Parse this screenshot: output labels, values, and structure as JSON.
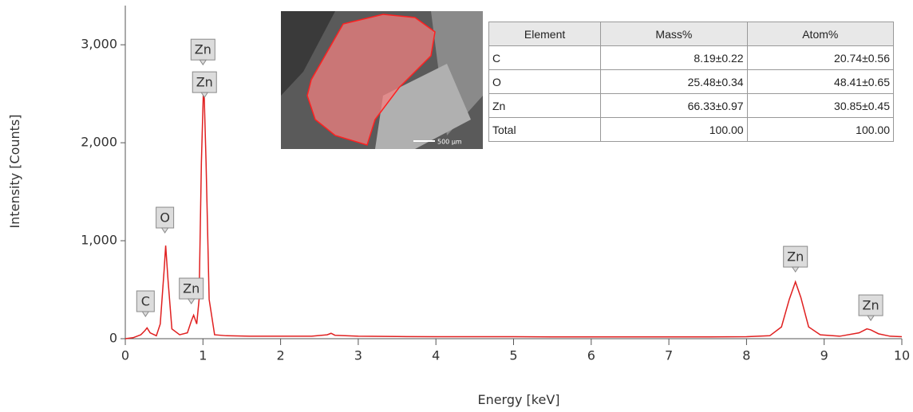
{
  "chart_data": {
    "type": "line",
    "xlabel": "Energy [keV]",
    "ylabel": "Intensity [Counts]",
    "xlim": [
      0,
      10
    ],
    "ylim": [
      0,
      3400
    ],
    "xticks": [
      0,
      1,
      2,
      3,
      4,
      5,
      6,
      7,
      8,
      9,
      10
    ],
    "yticks": [
      0,
      {
        "value": 1000,
        "label": "1,000"
      },
      {
        "value": 2000,
        "label": "2,000"
      },
      {
        "value": 3000,
        "label": "3,000"
      }
    ],
    "series": [
      {
        "color": "#e02020",
        "x": [
          0,
          0.1,
          0.2,
          0.25,
          0.28,
          0.32,
          0.4,
          0.45,
          0.5,
          0.52,
          0.55,
          0.6,
          0.7,
          0.8,
          0.85,
          0.88,
          0.92,
          0.95,
          0.98,
          1.01,
          1.04,
          1.08,
          1.15,
          1.3,
          1.6,
          2.0,
          2.4,
          2.6,
          2.65,
          2.7,
          3,
          3.5,
          4,
          4.5,
          5,
          5.5,
          6,
          6.5,
          7,
          7.5,
          8,
          8.3,
          8.45,
          8.55,
          8.63,
          8.7,
          8.8,
          8.95,
          9.2,
          9.45,
          9.55,
          9.6,
          9.7,
          9.85,
          10
        ],
        "values": [
          0,
          10,
          40,
          80,
          110,
          60,
          30,
          150,
          700,
          950,
          600,
          100,
          40,
          60,
          180,
          240,
          150,
          400,
          1800,
          2650,
          1800,
          400,
          40,
          30,
          25,
          25,
          25,
          40,
          55,
          35,
          25,
          22,
          20,
          20,
          20,
          18,
          18,
          18,
          18,
          18,
          20,
          30,
          120,
          400,
          580,
          420,
          120,
          40,
          25,
          60,
          100,
          90,
          50,
          25,
          20
        ]
      }
    ],
    "annotations": [
      {
        "text": "C",
        "x": 0.26,
        "y": 382
      },
      {
        "text": "O",
        "x": 0.51,
        "y": 1236
      },
      {
        "text": "Zn",
        "x": 0.85,
        "y": 512
      },
      {
        "text": "Zn",
        "x": 1.0,
        "y": 2951
      },
      {
        "text": "Zn",
        "x": 1.02,
        "y": 2618
      },
      {
        "text": "Zn",
        "x": 8.63,
        "y": 837
      },
      {
        "text": "Zn",
        "x": 9.6,
        "y": 341
      }
    ]
  },
  "inset": {
    "scale_label": "500 µm",
    "table": {
      "header": [
        "Element",
        "Mass%",
        "Atom%"
      ],
      "rows": [
        [
          "C",
          "8.19±0.22",
          "20.74±0.56"
        ],
        [
          "O",
          "25.48±0.34",
          "48.41±0.65"
        ],
        [
          "Zn",
          "66.33±0.97",
          "30.85±0.45"
        ],
        [
          "Total",
          "100.00",
          "100.00"
        ]
      ]
    }
  }
}
